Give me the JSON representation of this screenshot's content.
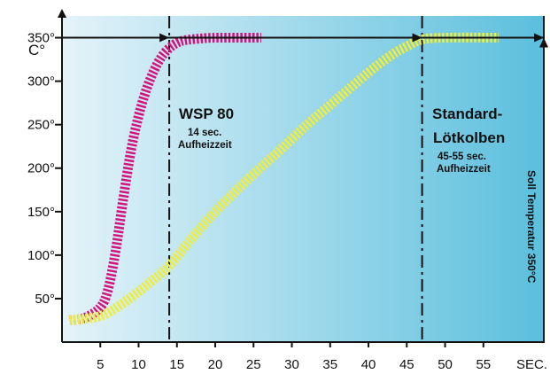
{
  "chart_data": {
    "type": "line",
    "ylabel": "C°",
    "xlabel": "SEC.",
    "xlim": [
      0,
      63
    ],
    "ylim": [
      0,
      375
    ],
    "x_ticks": [
      {
        "value": 5,
        "label": "5"
      },
      {
        "value": 10,
        "label": "10"
      },
      {
        "value": 15,
        "label": "15"
      },
      {
        "value": 20,
        "label": "20"
      },
      {
        "value": 25,
        "label": "25"
      },
      {
        "value": 30,
        "label": "30"
      },
      {
        "value": 35,
        "label": "35"
      },
      {
        "value": 40,
        "label": "40"
      },
      {
        "value": 45,
        "label": "45"
      },
      {
        "value": 50,
        "label": "50"
      },
      {
        "value": 55,
        "label": "55"
      }
    ],
    "y_ticks": [
      {
        "value": 50,
        "label": "50°"
      },
      {
        "value": 100,
        "label": "100°"
      },
      {
        "value": 150,
        "label": "150°"
      },
      {
        "value": 200,
        "label": "200°"
      },
      {
        "value": 250,
        "label": "250°"
      },
      {
        "value": 300,
        "label": "300°"
      },
      {
        "value": 350,
        "label": "350°"
      }
    ],
    "target_temperature": 350,
    "target_label": "Soll Temperatur 350°C",
    "series": [
      {
        "color": "#d4147e",
        "x": [
          1,
          3,
          5,
          6,
          7,
          8,
          9,
          10,
          11,
          12,
          13,
          14,
          15,
          16,
          18,
          20,
          26
        ],
        "y": [
          25,
          28,
          40,
          60,
          105,
          165,
          220,
          260,
          290,
          312,
          328,
          338,
          344,
          347,
          349,
          350,
          350
        ]
      },
      {
        "color": "#eeee3a",
        "x": [
          1,
          5,
          8,
          11,
          14,
          17,
          20,
          24,
          28,
          32,
          36,
          40,
          43,
          45,
          47,
          50,
          57
        ],
        "y": [
          25,
          30,
          45,
          65,
          88,
          120,
          150,
          185,
          217,
          250,
          280,
          310,
          330,
          340,
          348,
          350,
          350
        ]
      }
    ],
    "markers": [
      {
        "x": 14,
        "title": "WSP 80",
        "lines": [
          "14 sec.",
          "Aufheizzeit"
        ]
      },
      {
        "x": 47,
        "title": "Standard-",
        "title2": "Lötkolben",
        "lines": [
          "45-55 sec.",
          "Aufheizzeit"
        ]
      }
    ],
    "background_gradient": [
      "#e4f3f9",
      "#5bbfdd"
    ]
  }
}
